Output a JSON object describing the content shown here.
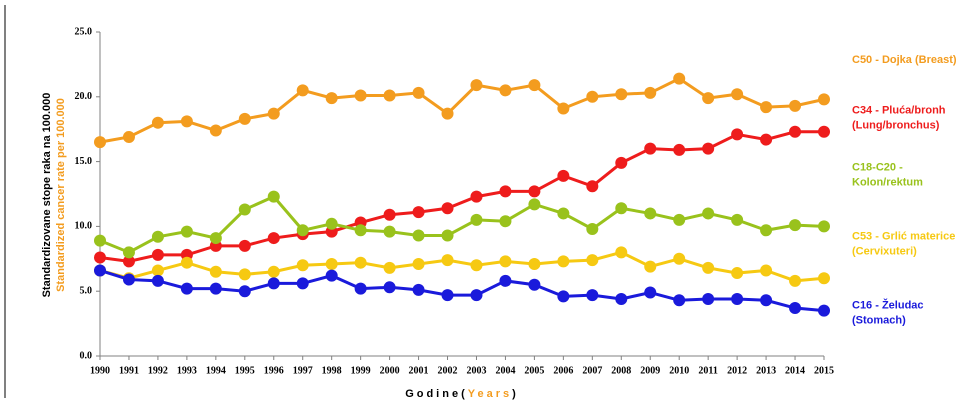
{
  "chart_data": {
    "type": "line",
    "ylabel": [
      "Standardizovane stope raka na 100.000",
      "Standardized cancer rate per 100.000"
    ],
    "ylabel_colors": [
      "#000000",
      "#f39c1f"
    ],
    "xlabel": [
      "Godine",
      "(",
      "Years",
      ")"
    ],
    "xlabel_colors": [
      "#000000",
      "#000000",
      "#f39c1f",
      "#000000"
    ],
    "categories": [
      "1990",
      "1991",
      "1992",
      "1993",
      "1994",
      "1995",
      "1996",
      "1997",
      "1998",
      "1999",
      "2000",
      "2001",
      "2002",
      "2003",
      "2004",
      "2005",
      "2006",
      "2007",
      "2008",
      "2009",
      "2010",
      "2011",
      "2012",
      "2013",
      "2014",
      "2015"
    ],
    "ylim": [
      0,
      25
    ],
    "yticks": [
      {
        "value": 0,
        "label": "0.0"
      },
      {
        "value": 5,
        "label": "5.0"
      },
      {
        "value": 10,
        "label": "10.0"
      },
      {
        "value": 15,
        "label": "15.0"
      },
      {
        "value": 20,
        "label": "20.0"
      },
      {
        "value": 25,
        "label": "25.0"
      }
    ],
    "series": [
      {
        "name": [
          "C50 - Dojka (Breast)"
        ],
        "color": "#f39c1f",
        "values": [
          16.5,
          16.9,
          18.0,
          18.1,
          17.4,
          18.3,
          18.7,
          20.5,
          19.9,
          20.1,
          20.1,
          20.3,
          18.7,
          20.9,
          20.5,
          20.9,
          19.1,
          20.0,
          20.2,
          20.3,
          21.4,
          19.9,
          20.2,
          19.2,
          19.3,
          19.8
        ]
      },
      {
        "name": [
          "C34 - Pluća/bronh",
          "(Lung/bronchus)"
        ],
        "color": "#ee1c1c",
        "values": [
          7.6,
          7.3,
          7.8,
          7.8,
          8.5,
          8.5,
          9.1,
          9.4,
          9.6,
          10.3,
          10.9,
          11.1,
          11.4,
          12.3,
          12.7,
          12.7,
          13.9,
          13.1,
          14.9,
          16.0,
          15.9,
          16.0,
          17.1,
          16.7,
          17.3,
          17.3
        ]
      },
      {
        "name": [
          "C18-C20 -",
          "Kolon/rektum"
        ],
        "color": "#99c21c",
        "values": [
          8.9,
          8.0,
          9.2,
          9.6,
          9.1,
          11.3,
          12.3,
          9.7,
          10.2,
          9.7,
          9.6,
          9.3,
          9.3,
          10.5,
          10.4,
          11.7,
          11.0,
          9.8,
          11.4,
          11.0,
          10.5,
          11.0,
          10.5,
          9.7,
          10.1,
          10.0
        ]
      },
      {
        "name": [
          "C53 - Grlić materice",
          "(Cervixuteri)"
        ],
        "color": "#f6c912",
        "values": [
          6.6,
          6.0,
          6.6,
          7.2,
          6.5,
          6.3,
          6.5,
          7.0,
          7.1,
          7.2,
          6.8,
          7.1,
          7.4,
          7.0,
          7.3,
          7.1,
          7.3,
          7.4,
          8.0,
          6.9,
          7.5,
          6.8,
          6.4,
          6.6,
          5.8,
          6.0
        ]
      },
      {
        "name": [
          "C16 - Želudac",
          "(Stomach)"
        ],
        "color": "#1a1adb",
        "values": [
          6.6,
          5.9,
          5.8,
          5.2,
          5.2,
          5.0,
          5.6,
          5.6,
          6.2,
          5.2,
          5.3,
          5.1,
          4.7,
          4.7,
          5.8,
          5.5,
          4.6,
          4.7,
          4.4,
          4.9,
          4.3,
          4.4,
          4.4,
          4.3,
          3.7,
          3.5
        ]
      }
    ]
  }
}
